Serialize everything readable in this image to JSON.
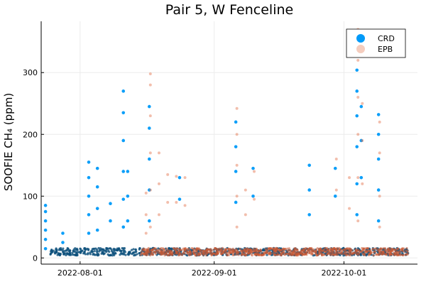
{
  "chart_data": {
    "type": "scatter",
    "title": "Pair 5, W Fenceline",
    "xlabel": "",
    "ylabel": "SOOFIE CH₄ (ppm)",
    "x_type": "date",
    "xlim": [
      "2022-07-23",
      "2022-10-18"
    ],
    "ylim": [
      -10,
      383
    ],
    "xticks": [
      "2022-08-01",
      "2022-09-01",
      "2022-10-01"
    ],
    "yticks": [
      0,
      100,
      200,
      300
    ],
    "grid": true,
    "legend_position": "top-right",
    "series": [
      {
        "name": "CRD",
        "color": "#009af9",
        "points": [
          {
            "x": "2022-07-24",
            "y": 85
          },
          {
            "x": "2022-07-24",
            "y": 75
          },
          {
            "x": "2022-07-24",
            "y": 60
          },
          {
            "x": "2022-07-24",
            "y": 45
          },
          {
            "x": "2022-07-24",
            "y": 30
          },
          {
            "x": "2022-07-24",
            "y": 15
          },
          {
            "x": "2022-07-28",
            "y": 40
          },
          {
            "x": "2022-07-28",
            "y": 25
          },
          {
            "x": "2022-08-03",
            "y": 155
          },
          {
            "x": "2022-08-03",
            "y": 130
          },
          {
            "x": "2022-08-03",
            "y": 100
          },
          {
            "x": "2022-08-03",
            "y": 70
          },
          {
            "x": "2022-08-03",
            "y": 40
          },
          {
            "x": "2022-08-05",
            "y": 145
          },
          {
            "x": "2022-08-05",
            "y": 115
          },
          {
            "x": "2022-08-05",
            "y": 80
          },
          {
            "x": "2022-08-05",
            "y": 45
          },
          {
            "x": "2022-08-08",
            "y": 88
          },
          {
            "x": "2022-08-08",
            "y": 60
          },
          {
            "x": "2022-08-11",
            "y": 270
          },
          {
            "x": "2022-08-11",
            "y": 235
          },
          {
            "x": "2022-08-11",
            "y": 190
          },
          {
            "x": "2022-08-11",
            "y": 140
          },
          {
            "x": "2022-08-11",
            "y": 95
          },
          {
            "x": "2022-08-11",
            "y": 50
          },
          {
            "x": "2022-08-12",
            "y": 140
          },
          {
            "x": "2022-08-12",
            "y": 100
          },
          {
            "x": "2022-08-12",
            "y": 60
          },
          {
            "x": "2022-08-17",
            "y": 245
          },
          {
            "x": "2022-08-17",
            "y": 210
          },
          {
            "x": "2022-08-17",
            "y": 160
          },
          {
            "x": "2022-08-17",
            "y": 110
          },
          {
            "x": "2022-08-17",
            "y": 60
          },
          {
            "x": "2022-08-24",
            "y": 130
          },
          {
            "x": "2022-08-24",
            "y": 95
          },
          {
            "x": "2022-09-06",
            "y": 220
          },
          {
            "x": "2022-09-06",
            "y": 180
          },
          {
            "x": "2022-09-06",
            "y": 140
          },
          {
            "x": "2022-09-06",
            "y": 90
          },
          {
            "x": "2022-09-10",
            "y": 145
          },
          {
            "x": "2022-09-10",
            "y": 100
          },
          {
            "x": "2022-09-23",
            "y": 150
          },
          {
            "x": "2022-09-23",
            "y": 110
          },
          {
            "x": "2022-09-23",
            "y": 70
          },
          {
            "x": "2022-09-29",
            "y": 145
          },
          {
            "x": "2022-09-29",
            "y": 100
          },
          {
            "x": "2022-10-04",
            "y": 304
          },
          {
            "x": "2022-10-04",
            "y": 270
          },
          {
            "x": "2022-10-04",
            "y": 230
          },
          {
            "x": "2022-10-04",
            "y": 180
          },
          {
            "x": "2022-10-04",
            "y": 120
          },
          {
            "x": "2022-10-04",
            "y": 70
          },
          {
            "x": "2022-10-05",
            "y": 245
          },
          {
            "x": "2022-10-05",
            "y": 190
          },
          {
            "x": "2022-10-05",
            "y": 130
          },
          {
            "x": "2022-10-09",
            "y": 232
          },
          {
            "x": "2022-10-09",
            "y": 200
          },
          {
            "x": "2022-10-09",
            "y": 160
          },
          {
            "x": "2022-10-09",
            "y": 110
          },
          {
            "x": "2022-10-09",
            "y": 60
          }
        ]
      },
      {
        "name": "EPB",
        "color": "#e26f46",
        "points": [
          {
            "x": "2022-08-16",
            "y": 105
          },
          {
            "x": "2022-08-16",
            "y": 70
          },
          {
            "x": "2022-08-16",
            "y": 40
          },
          {
            "x": "2022-08-17",
            "y": 298
          },
          {
            "x": "2022-08-17",
            "y": 280
          },
          {
            "x": "2022-08-17",
            "y": 230
          },
          {
            "x": "2022-08-17",
            "y": 170
          },
          {
            "x": "2022-08-17",
            "y": 110
          },
          {
            "x": "2022-08-17",
            "y": 50
          },
          {
            "x": "2022-08-19",
            "y": 170
          },
          {
            "x": "2022-08-19",
            "y": 120
          },
          {
            "x": "2022-08-19",
            "y": 70
          },
          {
            "x": "2022-08-21",
            "y": 135
          },
          {
            "x": "2022-08-21",
            "y": 90
          },
          {
            "x": "2022-08-23",
            "y": 132
          },
          {
            "x": "2022-08-23",
            "y": 90
          },
          {
            "x": "2022-08-25",
            "y": 130
          },
          {
            "x": "2022-08-25",
            "y": 85
          },
          {
            "x": "2022-09-06",
            "y": 242
          },
          {
            "x": "2022-09-06",
            "y": 200
          },
          {
            "x": "2022-09-06",
            "y": 150
          },
          {
            "x": "2022-09-06",
            "y": 100
          },
          {
            "x": "2022-09-06",
            "y": 50
          },
          {
            "x": "2022-09-08",
            "y": 110
          },
          {
            "x": "2022-09-08",
            "y": 70
          },
          {
            "x": "2022-09-10",
            "y": 140
          },
          {
            "x": "2022-09-10",
            "y": 95
          },
          {
            "x": "2022-09-29",
            "y": 160
          },
          {
            "x": "2022-09-29",
            "y": 110
          },
          {
            "x": "2022-10-02",
            "y": 130
          },
          {
            "x": "2022-10-02",
            "y": 80
          },
          {
            "x": "2022-10-04",
            "y": 370
          },
          {
            "x": "2022-10-04",
            "y": 320
          },
          {
            "x": "2022-10-04",
            "y": 260
          },
          {
            "x": "2022-10-04",
            "y": 200
          },
          {
            "x": "2022-10-04",
            "y": 130
          },
          {
            "x": "2022-10-04",
            "y": 60
          },
          {
            "x": "2022-10-05",
            "y": 250
          },
          {
            "x": "2022-10-05",
            "y": 190
          },
          {
            "x": "2022-10-05",
            "y": 120
          },
          {
            "x": "2022-10-09",
            "y": 220
          },
          {
            "x": "2022-10-09",
            "y": 170
          },
          {
            "x": "2022-10-09",
            "y": 100
          },
          {
            "x": "2022-10-09",
            "y": 50
          }
        ]
      }
    ]
  }
}
